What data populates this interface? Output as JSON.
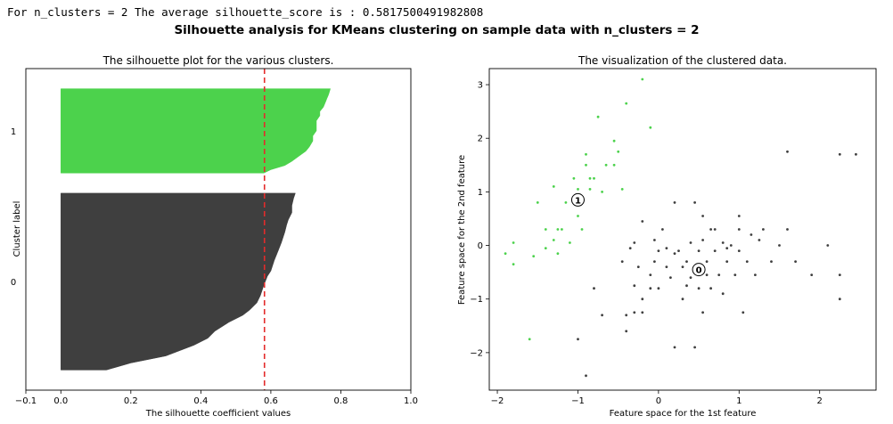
{
  "console_line": "For n_clusters = 2 The average silhouette_score is : 0.5817500491982808",
  "suptitle": "Silhouette analysis for KMeans clustering on sample data with n_clusters = 2",
  "colors": {
    "cluster0": "#3f3f3f",
    "cluster1": "#4cd24c",
    "avg_line": "#e32b2b",
    "marker_face": "#ffffff",
    "marker_edge": "#000000"
  },
  "chart_data": [
    {
      "type": "area",
      "title": "The silhouette plot for the various clusters.",
      "xlabel": "The silhouette coefficient values",
      "ylabel": "Cluster label",
      "xlim": [
        -0.1,
        1.0
      ],
      "ylim": [
        0,
        160
      ],
      "xticks": [
        -0.1,
        0.0,
        0.2,
        0.4,
        0.6,
        0.8,
        1.0
      ],
      "xtick_labels": [
        "−0.1",
        "0.0",
        "0.2",
        "0.4",
        "0.6",
        "0.8",
        "1.0"
      ],
      "average_silhouette": 0.5817500491982808,
      "clusters": [
        {
          "label": "0",
          "y_lower": 10,
          "y_upper": 98,
          "profile": [
            [
              0,
              0.13
            ],
            [
              4,
              0.2
            ],
            [
              8,
              0.3
            ],
            [
              11,
              0.34
            ],
            [
              14,
              0.38
            ],
            [
              18,
              0.42
            ],
            [
              22,
              0.44
            ],
            [
              27,
              0.48
            ],
            [
              31,
              0.52
            ],
            [
              34,
              0.54
            ],
            [
              38,
              0.56
            ],
            [
              42,
              0.57
            ],
            [
              48,
              0.58
            ],
            [
              53,
              0.59
            ],
            [
              56,
              0.6
            ],
            [
              62,
              0.61
            ],
            [
              67,
              0.62
            ],
            [
              72,
              0.63
            ],
            [
              78,
              0.64
            ],
            [
              82,
              0.645
            ],
            [
              85,
              0.65
            ],
            [
              89,
              0.66
            ],
            [
              93,
              0.66
            ],
            [
              97,
              0.665
            ],
            [
              100,
              0.67
            ]
          ]
        },
        {
          "label": "1",
          "y_lower": 108,
          "y_upper": 150,
          "profile": [
            [
              0,
              0.58
            ],
            [
              4,
              0.6
            ],
            [
              9,
              0.64
            ],
            [
              14,
              0.66
            ],
            [
              20,
              0.68
            ],
            [
              26,
              0.7
            ],
            [
              31,
              0.71
            ],
            [
              38,
              0.72
            ],
            [
              44,
              0.72
            ],
            [
              50,
              0.73
            ],
            [
              56,
              0.73
            ],
            [
              62,
              0.73
            ],
            [
              68,
              0.74
            ],
            [
              73,
              0.74
            ],
            [
              78,
              0.75
            ],
            [
              83,
              0.755
            ],
            [
              88,
              0.76
            ],
            [
              93,
              0.765
            ],
            [
              100,
              0.77
            ]
          ]
        }
      ]
    },
    {
      "type": "scatter",
      "title": "The visualization of the clustered data.",
      "xlabel": "Feature space for the 1st feature",
      "ylabel": "Feature space for the 2nd feature",
      "xlim": [
        -2.1,
        2.7
      ],
      "ylim": [
        -2.7,
        3.3
      ],
      "xticks": [
        -2,
        -1,
        0,
        1,
        2
      ],
      "xtick_labels": [
        "−2",
        "−1",
        "0",
        "1",
        "2"
      ],
      "yticks": [
        -2,
        -1,
        0,
        1,
        2,
        3
      ],
      "ytick_labels": [
        "−2",
        "−1",
        "0",
        "1",
        "2",
        "3"
      ],
      "centers": [
        {
          "label": "0",
          "x": 0.5,
          "y": -0.45
        },
        {
          "label": "1",
          "x": -1.0,
          "y": 0.85
        }
      ],
      "series": [
        {
          "name": "0",
          "points": [
            [
              -0.9,
              -2.43
            ],
            [
              -1.0,
              -1.75
            ],
            [
              -0.8,
              -0.8
            ],
            [
              -0.7,
              -1.3
            ],
            [
              -0.45,
              -0.3
            ],
            [
              -0.4,
              -1.3
            ],
            [
              -0.4,
              -1.6
            ],
            [
              -0.35,
              -0.05
            ],
            [
              -0.3,
              0.05
            ],
            [
              -0.3,
              -0.75
            ],
            [
              -0.3,
              -1.25
            ],
            [
              -0.25,
              -0.4
            ],
            [
              -0.2,
              -1.0
            ],
            [
              -0.2,
              -1.25
            ],
            [
              -0.2,
              0.45
            ],
            [
              -0.1,
              -0.55
            ],
            [
              -0.1,
              -0.8
            ],
            [
              -0.05,
              0.1
            ],
            [
              0.0,
              -0.1
            ],
            [
              0.0,
              -0.8
            ],
            [
              0.05,
              0.3
            ],
            [
              0.1,
              -0.05
            ],
            [
              0.1,
              -0.4
            ],
            [
              0.15,
              -0.6
            ],
            [
              0.2,
              0.8
            ],
            [
              0.2,
              -1.9
            ],
            [
              0.25,
              -0.1
            ],
            [
              0.3,
              -0.4
            ],
            [
              0.3,
              -1.0
            ],
            [
              0.35,
              -0.3
            ],
            [
              0.4,
              0.05
            ],
            [
              0.4,
              -0.6
            ],
            [
              0.45,
              0.8
            ],
            [
              0.45,
              -1.9
            ],
            [
              0.5,
              -0.1
            ],
            [
              0.5,
              -0.8
            ],
            [
              0.55,
              0.1
            ],
            [
              0.55,
              0.55
            ],
            [
              0.55,
              -1.25
            ],
            [
              0.6,
              -0.3
            ],
            [
              0.65,
              0.3
            ],
            [
              0.65,
              -0.8
            ],
            [
              0.7,
              -0.1
            ],
            [
              0.7,
              0.3
            ],
            [
              0.75,
              -0.55
            ],
            [
              0.8,
              0.05
            ],
            [
              0.8,
              -0.9
            ],
            [
              0.85,
              -0.3
            ],
            [
              0.9,
              0.0
            ],
            [
              0.95,
              -0.55
            ],
            [
              1.0,
              0.3
            ],
            [
              1.0,
              0.55
            ],
            [
              1.0,
              -0.1
            ],
            [
              1.05,
              -1.25
            ],
            [
              1.1,
              -0.3
            ],
            [
              1.15,
              0.2
            ],
            [
              1.2,
              -0.55
            ],
            [
              1.25,
              0.1
            ],
            [
              1.3,
              0.3
            ],
            [
              1.4,
              -0.3
            ],
            [
              1.5,
              0.0
            ],
            [
              1.6,
              0.3
            ],
            [
              1.6,
              1.75
            ],
            [
              1.7,
              -0.3
            ],
            [
              1.9,
              -0.55
            ],
            [
              2.1,
              0.0
            ],
            [
              2.25,
              -0.55
            ],
            [
              2.25,
              -1.0
            ],
            [
              2.25,
              1.7
            ],
            [
              2.45,
              1.7
            ],
            [
              0.2,
              -0.15
            ],
            [
              0.35,
              -0.75
            ],
            [
              0.6,
              -0.55
            ],
            [
              0.85,
              -0.05
            ],
            [
              -0.05,
              -0.3
            ]
          ]
        },
        {
          "name": "1",
          "points": [
            [
              -1.9,
              -0.15
            ],
            [
              -1.8,
              0.05
            ],
            [
              -1.8,
              -0.35
            ],
            [
              -1.6,
              -1.75
            ],
            [
              -1.5,
              0.8
            ],
            [
              -1.4,
              0.3
            ],
            [
              -1.4,
              -0.05
            ],
            [
              -1.3,
              0.1
            ],
            [
              -1.3,
              1.1
            ],
            [
              -1.25,
              -0.15
            ],
            [
              -1.2,
              0.3
            ],
            [
              -1.15,
              0.8
            ],
            [
              -1.1,
              0.05
            ],
            [
              -1.05,
              1.25
            ],
            [
              -1.0,
              1.05
            ],
            [
              -1.0,
              0.55
            ],
            [
              -0.95,
              0.8
            ],
            [
              -0.95,
              0.3
            ],
            [
              -0.9,
              1.5
            ],
            [
              -0.9,
              1.7
            ],
            [
              -0.85,
              1.05
            ],
            [
              -0.8,
              1.25
            ],
            [
              -0.75,
              2.4
            ],
            [
              -0.7,
              1.0
            ],
            [
              -0.65,
              1.5
            ],
            [
              -0.55,
              1.95
            ],
            [
              -0.55,
              1.5
            ],
            [
              -0.5,
              1.75
            ],
            [
              -0.45,
              1.05
            ],
            [
              -0.4,
              2.65
            ],
            [
              -0.2,
              3.1
            ],
            [
              -0.1,
              2.2
            ],
            [
              -1.55,
              -0.2
            ],
            [
              -1.25,
              0.3
            ],
            [
              -0.85,
              1.25
            ]
          ]
        }
      ]
    }
  ]
}
